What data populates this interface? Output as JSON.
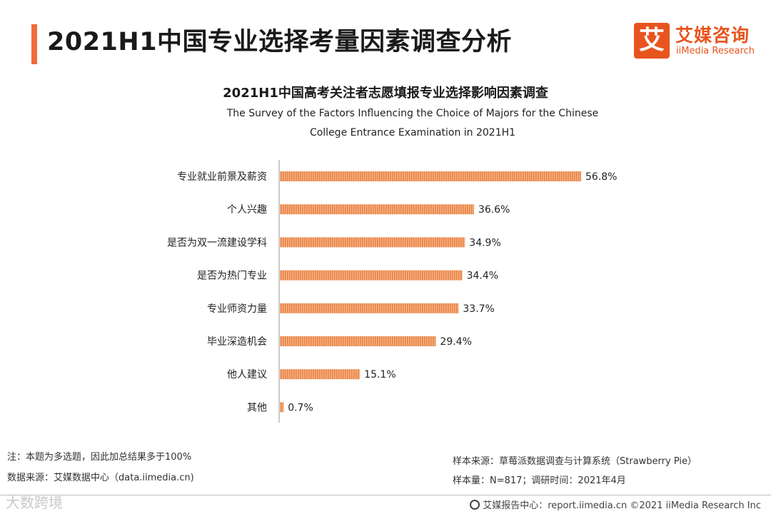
{
  "header": {
    "title": "2021H1中国专业选择考量因素调查分析"
  },
  "logo": {
    "mark": "艾",
    "cn_name": "艾媒咨询",
    "en_name": "iiMedia Research"
  },
  "chart_data": {
    "type": "bar",
    "orientation": "horizontal",
    "title": "2021H1中国高考关注者志愿填报专业选择影响因素调查",
    "subtitle_line1": "The Survey of the Factors Influencing the Choice of Majors for the Chinese",
    "subtitle_line2": "College Entrance Examination in 2021H1",
    "categories": [
      "专业就业前景及薪资",
      "个人兴趣",
      "是否为双一流建设学科",
      "是否为热门专业",
      "专业师资力量",
      "毕业深造机会",
      "他人建议",
      "其他"
    ],
    "values": [
      56.8,
      36.6,
      34.9,
      34.4,
      33.7,
      29.4,
      15.1,
      0.7
    ],
    "value_labels": [
      "56.8%",
      "36.6%",
      "34.9%",
      "34.4%",
      "33.7%",
      "29.4%",
      "15.1%",
      "0.7%"
    ],
    "unit": "%",
    "xlim": [
      0,
      60
    ],
    "bar_color": "#f0955a",
    "grid": false,
    "xlabel": "",
    "ylabel": ""
  },
  "notes": {
    "note": "注：本题为多选题，因此加总结果多于100%",
    "data_source": "数据来源：艾媒数据中心（data.iimedia.cn)",
    "sample_source": "样本来源：草莓派数据调查与计算系统（Strawberry Pie）",
    "sample_size": "样本量：N=817；调研时间：2021年4月"
  },
  "footer": {
    "text": "艾媒报告中心：report.iimedia.cn  ©2021  iiMedia Research  Inc"
  },
  "watermark": {
    "text": "大数跨境"
  },
  "colors": {
    "accent": "#f26b3a",
    "brand": "#e8541e",
    "bar": "#f0955a"
  }
}
